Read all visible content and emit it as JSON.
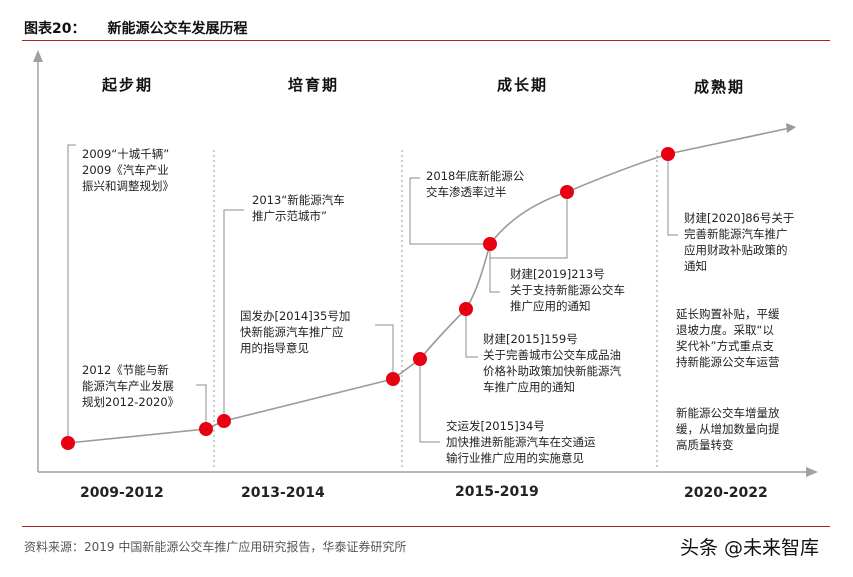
{
  "figure": {
    "title_label": "图表20：",
    "title_text": "新能源公交车发展历程",
    "source": "资料来源：2019 中国新能源公交车推广应用研究报告，华泰证券研究所",
    "watermark": "头条 @未来智库"
  },
  "phases": [
    "起步期",
    "培育期",
    "成长期",
    "成熟期"
  ],
  "periods": [
    "2009-2012",
    "2013-2014",
    "2015-2019",
    "2020-2022"
  ],
  "annotations": [
    {
      "text": "2009“十城千辆”\n2009《汽车产业\n振兴和调整规划》"
    },
    {
      "text": "2012《节能与新\n能源汽车产业发展\n规划2012-2020》"
    },
    {
      "text": "2013“新能源汽车\n推广示范城市”"
    },
    {
      "text": "国发办[2014]35号加\n快新能源汽车推广应\n用的指导意见"
    },
    {
      "text": "交运发[2015]34号\n加快推进新能源汽车在交通运\n输行业推广应用的实施意见"
    },
    {
      "text": "财建[2015]159号\n关于完善城市公交车成品油\n价格补助政策加快新能源汽\n车推广应用的通知"
    },
    {
      "text": "财建[2019]213号\n关于支持新能源公交车\n推广应用的通知"
    },
    {
      "text": "2018年底新能源公\n交车渗透率过半"
    },
    {
      "text": "财建[2020]86号关于\n完善新能源汽车推广\n应用财政补贴政策的\n通知"
    },
    {
      "text": "延长购置补贴，平缓\n退坡力度。采取“以\n奖代补”方式重点支\n持新能源公交车运营"
    },
    {
      "text": "新能源公交车增量放\n缓，从增加数量向提\n高质量转变"
    }
  ],
  "colors": {
    "accent": "#b22222",
    "marker": "#e60012",
    "line": "#9a9a9a"
  }
}
